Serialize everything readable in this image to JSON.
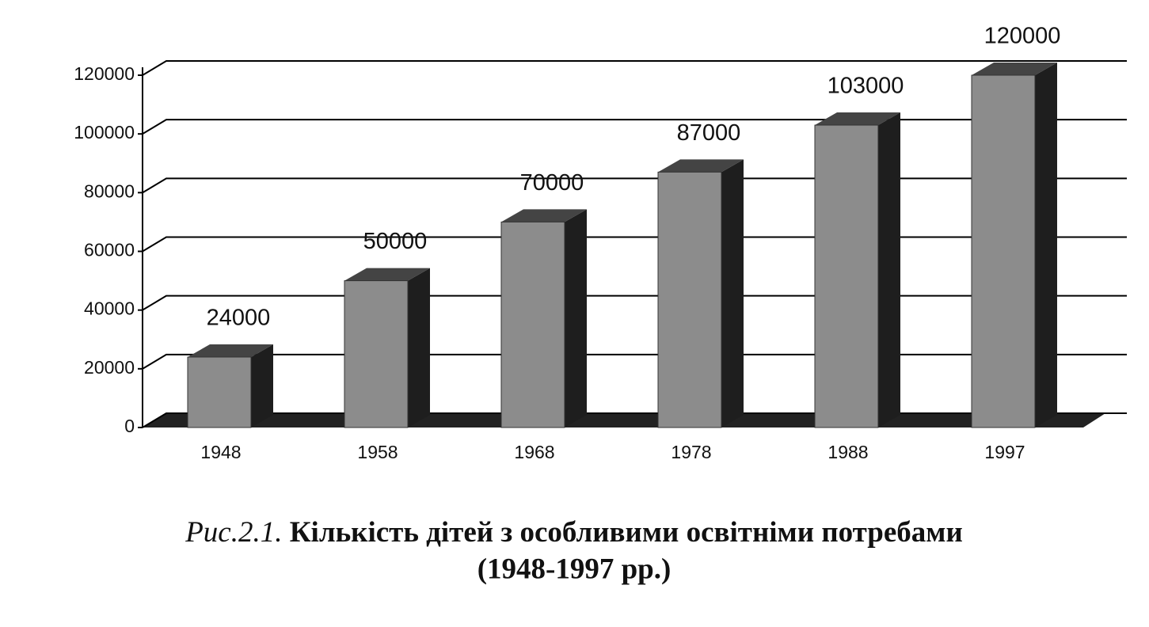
{
  "chart_data": {
    "type": "bar",
    "figure_label": "Рис.2.1.",
    "title": "Кількість дітей з особливими освітніми потребами",
    "subtitle": "(1948-1997 рр.)",
    "categories": [
      "1948",
      "1958",
      "1968",
      "1978",
      "1988",
      "1997"
    ],
    "values": [
      24000,
      50000,
      70000,
      87000,
      103000,
      120000
    ],
    "color": "#8c8c8c",
    "ylim": [
      0,
      120000
    ],
    "yticks": [
      0,
      20000,
      40000,
      60000,
      80000,
      100000,
      120000
    ],
    "grid": true
  }
}
